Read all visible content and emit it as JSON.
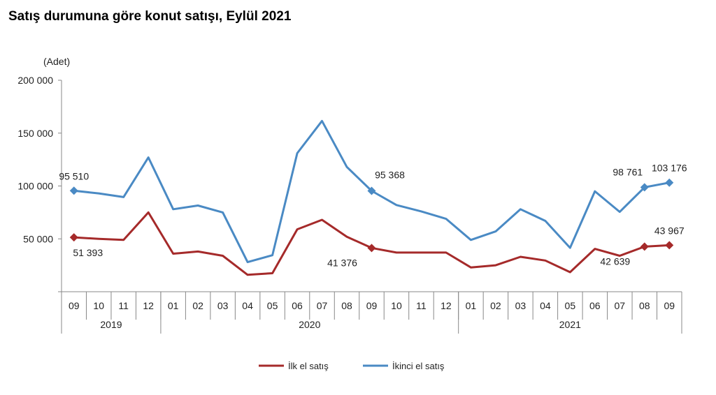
{
  "title": "Satış durumuna göre konut satışı, Eylül 2021",
  "chart_data": {
    "type": "line",
    "title": "Satış durumuna göre konut satışı, Eylül 2021",
    "ylabel": "(Adet)",
    "ylim": [
      0,
      200000
    ],
    "yticks": [
      0,
      50000,
      100000,
      150000,
      200000
    ],
    "ytick_labels": [
      "",
      "50 000",
      "100 000",
      "150 000",
      "200 000"
    ],
    "grid": false,
    "legend": "bottom",
    "categories": [
      "09",
      "10",
      "11",
      "12",
      "01",
      "02",
      "03",
      "04",
      "05",
      "06",
      "07",
      "08",
      "09",
      "10",
      "11",
      "12",
      "01",
      "02",
      "03",
      "04",
      "05",
      "06",
      "07",
      "08",
      "09"
    ],
    "year_groups": [
      {
        "label": "2019",
        "start": 0,
        "end": 3
      },
      {
        "label": "2020",
        "start": 4,
        "end": 15
      },
      {
        "label": "2021",
        "start": 16,
        "end": 24
      }
    ],
    "series": [
      {
        "name": "İlk el satış",
        "color": "#a52a2a",
        "values": [
          51393,
          50000,
          49000,
          75000,
          36000,
          38000,
          34000,
          16000,
          17500,
          59000,
          68000,
          52000,
          41376,
          37000,
          37000,
          37000,
          23000,
          25000,
          33000,
          29500,
          18500,
          40500,
          34000,
          42639,
          43967
        ],
        "labels": [
          {
            "index": 0,
            "text": "51 393",
            "pos": "below"
          },
          {
            "index": 12,
            "text": "41 376",
            "pos": "below-left"
          },
          {
            "index": 23,
            "text": "42 639",
            "pos": "below-left"
          },
          {
            "index": 24,
            "text": "43 967",
            "pos": "above"
          }
        ]
      },
      {
        "name": "İkinci el satış",
        "color": "#4a8ac4",
        "values": [
          95510,
          93000,
          89500,
          127000,
          78000,
          81500,
          75000,
          28000,
          34500,
          131000,
          161500,
          118000,
          95368,
          82000,
          76000,
          69000,
          49000,
          57000,
          78000,
          67000,
          41500,
          95000,
          75500,
          98761,
          103176
        ],
        "labels": [
          {
            "index": 0,
            "text": "95 510",
            "pos": "above"
          },
          {
            "index": 12,
            "text": "95 368",
            "pos": "above-right"
          },
          {
            "index": 23,
            "text": "98 761",
            "pos": "above-left"
          },
          {
            "index": 24,
            "text": "103 176",
            "pos": "above"
          }
        ]
      }
    ]
  }
}
